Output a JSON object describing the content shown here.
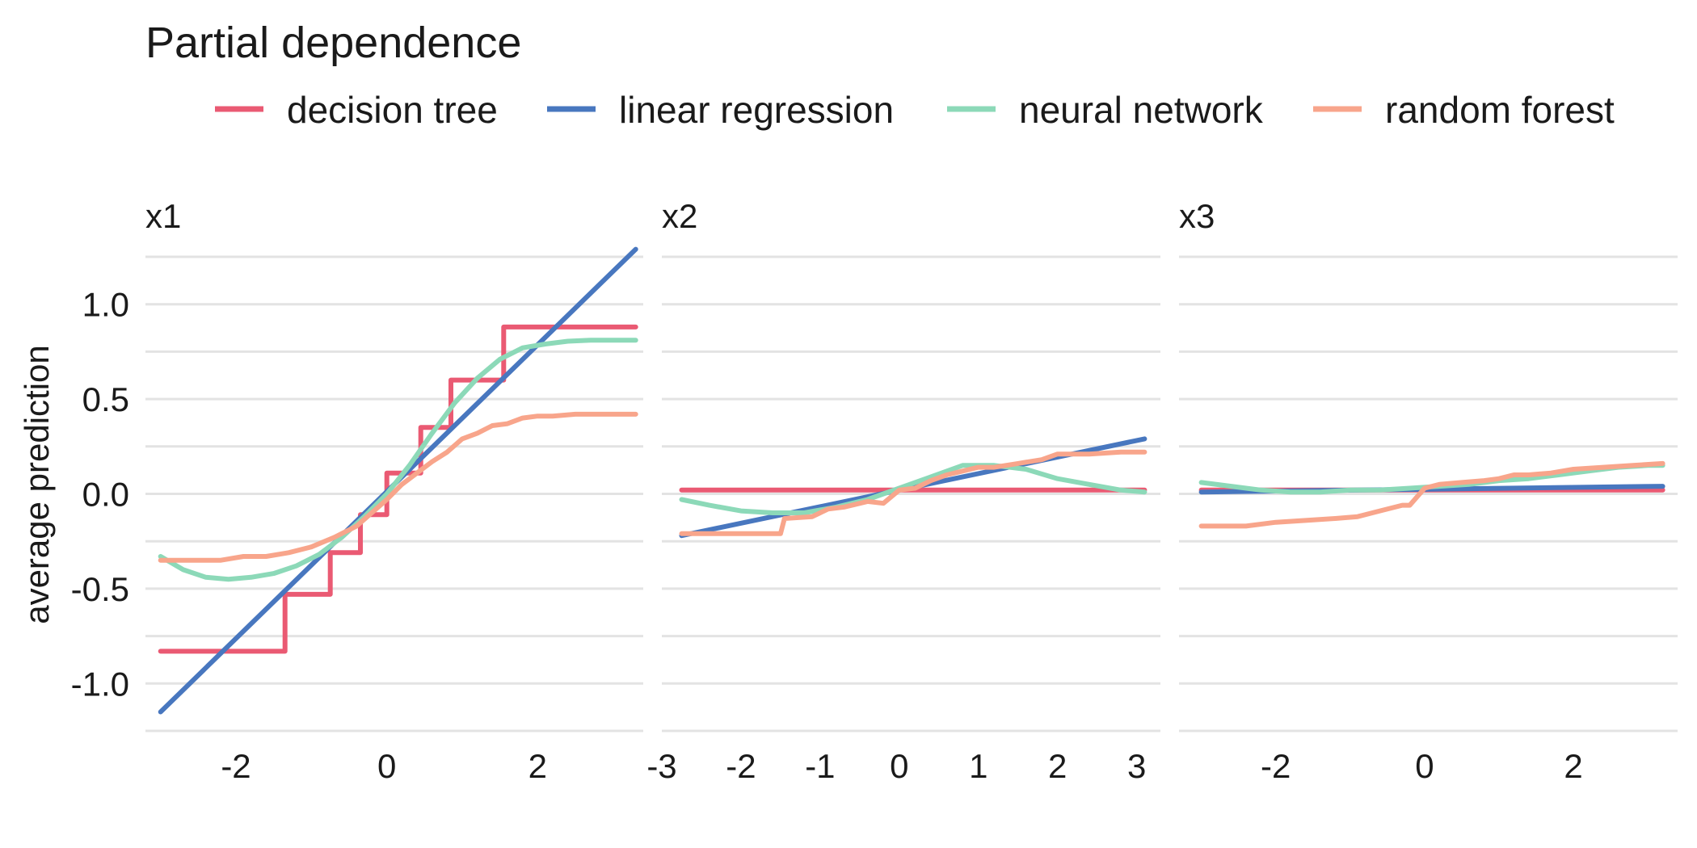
{
  "chart_data": {
    "type": "line",
    "title": "Partial dependence",
    "ylabel": "average prediction",
    "ylim": [
      -1.25,
      1.25
    ],
    "y_ticks": [
      -1.0,
      -0.5,
      0.0,
      0.5,
      1.0
    ],
    "y_tick_labels": [
      "-1.0",
      "-0.5",
      "0.0",
      "0.5",
      "1.0"
    ],
    "legend": {
      "position": "top",
      "entries": [
        {
          "name": "decision tree",
          "color": "#EA5A73"
        },
        {
          "name": "linear regression",
          "color": "#4877BF"
        },
        {
          "name": "neural network",
          "color": "#8CD9B8"
        },
        {
          "name": "random forest",
          "color": "#F8A58B"
        }
      ]
    },
    "facets": [
      {
        "label": "x1",
        "xlim": [
          -3.2,
          3.4
        ],
        "x_ticks": [
          -2,
          0,
          2
        ],
        "x_tick_labels": [
          "-2",
          "0",
          "2"
        ],
        "series": [
          {
            "name": "decision tree",
            "color": "#EA5A73",
            "step": true,
            "x": [
              -3.0,
              -1.35,
              -0.75,
              -0.35,
              0.0,
              0.45,
              0.85,
              1.55,
              3.3
            ],
            "y": [
              -0.83,
              -0.53,
              -0.31,
              -0.11,
              0.11,
              0.35,
              0.6,
              0.88,
              0.88
            ]
          },
          {
            "name": "linear regression",
            "color": "#4877BF",
            "step": false,
            "x": [
              -3.0,
              3.3
            ],
            "y": [
              -1.15,
              1.29
            ]
          },
          {
            "name": "neural network",
            "color": "#8CD9B8",
            "step": false,
            "x": [
              -3.0,
              -2.7,
              -2.4,
              -2.1,
              -1.8,
              -1.5,
              -1.2,
              -0.9,
              -0.6,
              -0.3,
              0.0,
              0.3,
              0.6,
              0.9,
              1.2,
              1.5,
              1.8,
              2.1,
              2.4,
              2.7,
              3.0,
              3.3
            ],
            "y": [
              -0.33,
              -0.4,
              -0.44,
              -0.45,
              -0.44,
              -0.42,
              -0.38,
              -0.32,
              -0.23,
              -0.12,
              0.0,
              0.15,
              0.32,
              0.48,
              0.61,
              0.71,
              0.77,
              0.79,
              0.805,
              0.81,
              0.81,
              0.81
            ]
          },
          {
            "name": "random forest",
            "color": "#F8A58B",
            "step": false,
            "x": [
              -3.0,
              -2.6,
              -2.2,
              -1.9,
              -1.6,
              -1.3,
              -1.0,
              -0.7,
              -0.4,
              -0.2,
              0.0,
              0.2,
              0.4,
              0.6,
              0.8,
              1.0,
              1.2,
              1.4,
              1.6,
              1.8,
              2.0,
              2.2,
              2.5,
              2.8,
              3.1,
              3.3
            ],
            "y": [
              -0.35,
              -0.35,
              -0.35,
              -0.33,
              -0.33,
              -0.31,
              -0.28,
              -0.23,
              -0.17,
              -0.1,
              -0.03,
              0.05,
              0.11,
              0.17,
              0.22,
              0.29,
              0.32,
              0.36,
              0.37,
              0.4,
              0.41,
              0.41,
              0.42,
              0.42,
              0.42,
              0.42
            ]
          }
        ]
      },
      {
        "label": "x2",
        "xlim": [
          -3.0,
          3.3
        ],
        "x_ticks": [
          -3,
          -2,
          -1,
          0,
          1,
          2,
          3
        ],
        "x_tick_labels": [
          "-3",
          "-2",
          "-1",
          "0",
          "1",
          "2",
          "3"
        ],
        "series": [
          {
            "name": "decision tree",
            "color": "#EA5A73",
            "step": false,
            "x": [
              -2.75,
              3.1
            ],
            "y": [
              0.02,
              0.02
            ]
          },
          {
            "name": "linear regression",
            "color": "#4877BF",
            "step": false,
            "x": [
              -2.75,
              3.1
            ],
            "y": [
              -0.22,
              0.29
            ]
          },
          {
            "name": "neural network",
            "color": "#8CD9B8",
            "step": false,
            "x": [
              -2.75,
              -2.4,
              -2.0,
              -1.6,
              -1.2,
              -0.8,
              -0.4,
              0.0,
              0.4,
              0.8,
              1.2,
              1.6,
              2.0,
              2.4,
              2.8,
              3.1
            ],
            "y": [
              -0.03,
              -0.06,
              -0.09,
              -0.1,
              -0.1,
              -0.07,
              -0.03,
              0.03,
              0.09,
              0.15,
              0.15,
              0.13,
              0.08,
              0.05,
              0.02,
              0.01
            ]
          },
          {
            "name": "random forest",
            "color": "#F8A58B",
            "step": false,
            "x": [
              -2.75,
              -2.2,
              -1.75,
              -1.5,
              -1.45,
              -1.1,
              -0.9,
              -0.7,
              -0.4,
              -0.2,
              0.0,
              0.2,
              0.4,
              0.6,
              0.8,
              1.0,
              1.2,
              1.5,
              1.8,
              2.0,
              2.4,
              2.8,
              3.1
            ],
            "y": [
              -0.21,
              -0.21,
              -0.21,
              -0.21,
              -0.13,
              -0.12,
              -0.08,
              -0.07,
              -0.04,
              -0.05,
              0.02,
              0.03,
              0.07,
              0.1,
              0.12,
              0.14,
              0.14,
              0.16,
              0.18,
              0.21,
              0.21,
              0.22,
              0.22
            ]
          }
        ]
      },
      {
        "label": "x3",
        "xlim": [
          -3.3,
          3.4
        ],
        "x_ticks": [
          -2,
          0,
          2
        ],
        "x_tick_labels": [
          "-2",
          "0",
          "2"
        ],
        "series": [
          {
            "name": "decision tree",
            "color": "#EA5A73",
            "step": false,
            "x": [
              -3.0,
              3.2
            ],
            "y": [
              0.02,
              0.02
            ]
          },
          {
            "name": "linear regression",
            "color": "#4877BF",
            "step": false,
            "x": [
              -3.0,
              3.2
            ],
            "y": [
              0.01,
              0.04
            ]
          },
          {
            "name": "neural network",
            "color": "#8CD9B8",
            "step": false,
            "x": [
              -3.0,
              -2.6,
              -2.2,
              -1.8,
              -1.4,
              -1.0,
              -0.6,
              -0.2,
              0.2,
              0.6,
              1.0,
              1.4,
              1.8,
              2.2,
              2.6,
              3.0,
              3.2
            ],
            "y": [
              0.06,
              0.04,
              0.02,
              0.01,
              0.01,
              0.02,
              0.02,
              0.03,
              0.04,
              0.05,
              0.07,
              0.08,
              0.1,
              0.12,
              0.14,
              0.15,
              0.15
            ]
          },
          {
            "name": "random forest",
            "color": "#F8A58B",
            "step": false,
            "x": [
              -3.0,
              -2.4,
              -2.0,
              -1.6,
              -1.2,
              -0.9,
              -0.6,
              -0.3,
              -0.2,
              0.0,
              0.2,
              0.5,
              0.8,
              1.0,
              1.2,
              1.4,
              1.7,
              2.0,
              2.4,
              2.8,
              3.2
            ],
            "y": [
              -0.17,
              -0.17,
              -0.15,
              -0.14,
              -0.13,
              -0.12,
              -0.09,
              -0.06,
              -0.06,
              0.03,
              0.05,
              0.06,
              0.07,
              0.08,
              0.1,
              0.1,
              0.11,
              0.13,
              0.14,
              0.15,
              0.16
            ]
          }
        ]
      }
    ]
  }
}
